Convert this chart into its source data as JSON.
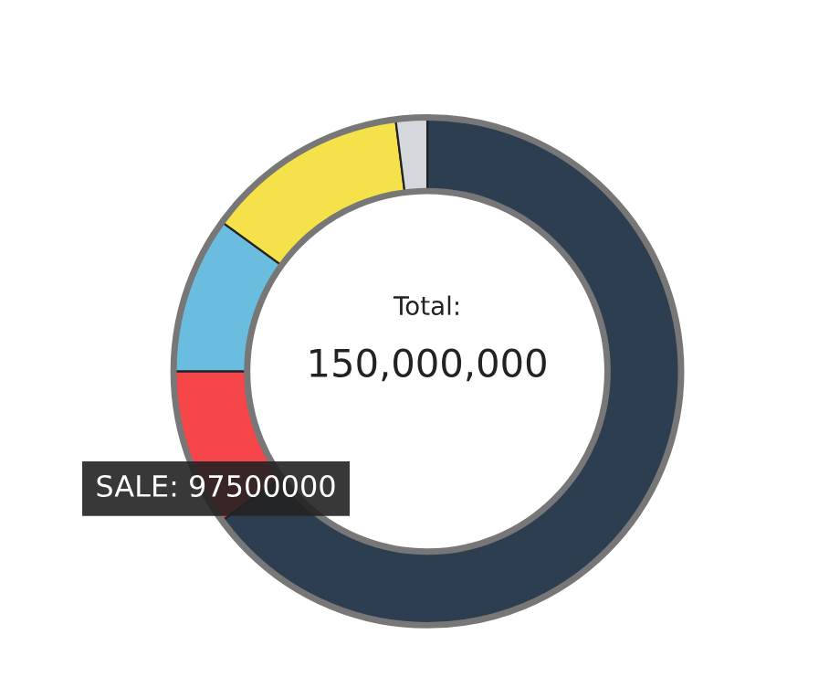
{
  "chart_data": {
    "type": "donut",
    "categories": [
      null,
      null,
      null,
      null,
      null
    ],
    "values": [
      65,
      10,
      10,
      13,
      2
    ],
    "colors": [
      "#2c3e50",
      "#f7464a",
      "#6bbde0",
      "#f5e14a",
      "#d4d8dc"
    ],
    "annotations": [
      "Total:",
      "150,000,000",
      "SALE: 97500000"
    ],
    "legend": false
  }
}
